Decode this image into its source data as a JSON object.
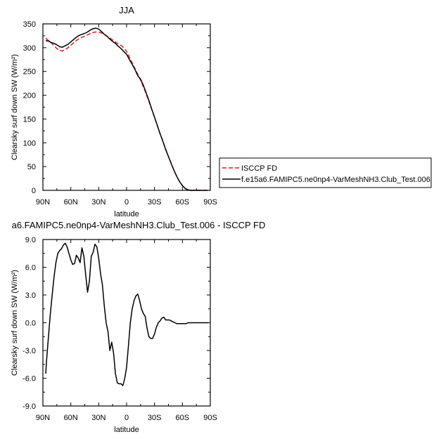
{
  "chart_data": [
    {
      "type": "line",
      "title": "JJA",
      "xlabel": "latitude",
      "ylabel": "Clearsky surf down SW (W/m²)",
      "xlim": [
        90,
        -90
      ],
      "ylim": [
        0,
        350
      ],
      "x_ticks": [
        90,
        60,
        30,
        0,
        -30,
        -60,
        -90
      ],
      "x_tick_labels": [
        "90N",
        "60N",
        "30N",
        "0",
        "30S",
        "60S",
        "90S"
      ],
      "y_ticks": [
        0,
        50,
        100,
        150,
        200,
        250,
        300,
        350
      ],
      "y_tick_labels": [
        "0",
        "50",
        "100",
        "150",
        "200",
        "250",
        "300",
        "350"
      ],
      "grid": false,
      "legend_position": "right",
      "series": [
        {
          "name": "ISCCP FD",
          "color": "#e41a1c",
          "dash": "dashed",
          "x": [
            87,
            84,
            81,
            78,
            75,
            72,
            69,
            66,
            63,
            60,
            57,
            54,
            51,
            48,
            45,
            42,
            39,
            36,
            33,
            30,
            27,
            24,
            21,
            18,
            15,
            12,
            9,
            6,
            3,
            0,
            -3,
            -6,
            -9,
            -12,
            -15,
            -18,
            -21,
            -24,
            -27,
            -30,
            -33,
            -36,
            -39,
            -42,
            -45,
            -48,
            -51,
            -54,
            -57,
            -60,
            -63,
            -66,
            -69,
            -72,
            -75,
            -78,
            -81,
            -84,
            -87
          ],
          "y": [
            320,
            315,
            310,
            304,
            298,
            294,
            293,
            296,
            300,
            305,
            310,
            315,
            319,
            322,
            324,
            327,
            330,
            332,
            333,
            333,
            331,
            328,
            324,
            320,
            316,
            312,
            308,
            305,
            300,
            292,
            280,
            268,
            256,
            244,
            232,
            218,
            203,
            187,
            170,
            153,
            136,
            119,
            103,
            87,
            71,
            56,
            42,
            29,
            18,
            10,
            4,
            1,
            0,
            0,
            0,
            0,
            0,
            0,
            0
          ]
        },
        {
          "name": "f.e15a6.FAMIPC5.ne0np4-VarMeshNH3.Club_Test.006",
          "color": "#000000",
          "dash": "solid",
          "x": [
            87,
            84,
            81,
            78,
            75,
            72,
            69,
            66,
            63,
            60,
            57,
            54,
            51,
            48,
            45,
            42,
            39,
            36,
            33,
            30,
            27,
            24,
            21,
            18,
            15,
            12,
            9,
            6,
            3,
            0,
            -3,
            -6,
            -9,
            -12,
            -15,
            -18,
            -21,
            -24,
            -27,
            -30,
            -33,
            -36,
            -39,
            -42,
            -45,
            -48,
            -51,
            -54,
            -57,
            -60,
            -63,
            -66,
            -69,
            -72,
            -75,
            -78,
            -81,
            -84,
            -87
          ],
          "y": [
            314.5,
            314,
            311,
            309,
            306,
            302,
            301,
            304,
            307,
            312,
            317,
            322,
            326,
            328,
            330,
            333,
            337,
            340,
            341,
            339,
            334,
            328,
            324,
            318,
            313,
            309,
            303,
            298,
            292,
            286,
            275,
            265,
            254,
            241,
            234,
            221,
            205,
            189,
            171,
            154,
            137,
            119,
            103,
            86,
            71,
            56,
            42,
            29,
            18,
            10,
            4,
            1,
            0,
            0,
            0,
            0,
            0,
            0,
            0
          ]
        }
      ]
    },
    {
      "type": "line",
      "title": "a6.FAMIPC5.ne0np4-VarMeshNH3.Club_Test.006 - ISCCP FD",
      "xlabel": "latitude",
      "ylabel": "Clearsky surf down SW (W/m²)",
      "xlim": [
        90,
        -90
      ],
      "ylim": [
        -9,
        9
      ],
      "x_ticks": [
        90,
        60,
        30,
        0,
        -30,
        -60,
        -90
      ],
      "x_tick_labels": [
        "90N",
        "60N",
        "30N",
        "0",
        "30S",
        "60S",
        "90S"
      ],
      "y_ticks": [
        -9,
        -6,
        -3,
        0,
        3,
        6,
        9
      ],
      "y_tick_labels": [
        "-9.0",
        "-6.0",
        "-3.0",
        "0.0",
        "3.0",
        "6.0",
        "9.0"
      ],
      "grid": false,
      "series": [
        {
          "color": "#000000",
          "dash": "solid",
          "x": [
            87,
            86,
            84,
            82,
            80,
            78,
            76,
            74,
            72,
            70,
            68,
            66,
            64,
            62,
            60,
            58,
            56,
            54,
            52,
            50,
            48,
            46,
            44,
            42,
            40,
            38,
            36,
            34,
            32,
            30,
            28,
            26,
            24,
            22,
            20,
            18,
            16,
            14,
            12,
            10,
            8,
            6,
            4,
            2,
            0,
            -2,
            -4,
            -6,
            -8,
            -10,
            -12,
            -14,
            -16,
            -18,
            -20,
            -22,
            -24,
            -26,
            -28,
            -30,
            -32,
            -34,
            -36,
            -38,
            -40,
            -42,
            -44,
            -46,
            -48,
            -50,
            -52,
            -54,
            -56,
            -58,
            -60,
            -62,
            -64,
            -66,
            -68,
            -70,
            -72,
            -74,
            -76,
            -78,
            -80,
            -82,
            -84,
            -86,
            -88
          ],
          "y": [
            -5.5,
            -4.0,
            -1.5,
            1.0,
            3.0,
            5.0,
            6.5,
            7.5,
            7.8,
            8.0,
            8.4,
            8.6,
            8.2,
            7.5,
            6.8,
            6.3,
            6.4,
            7.3,
            7.0,
            6.5,
            8.1,
            7.2,
            5.2,
            3.3,
            4.5,
            7.2,
            7.6,
            8.5,
            8.2,
            7.0,
            5.3,
            4.1,
            1.8,
            0.0,
            -1.0,
            -3.0,
            -2.1,
            -3.3,
            -5.5,
            -6.5,
            -6.6,
            -6.6,
            -6.8,
            -6.0,
            -4.8,
            -2.5,
            0.0,
            1.5,
            2.4,
            2.9,
            3.1,
            2.4,
            1.5,
            1.0,
            0.7,
            -0.6,
            -1.5,
            -1.7,
            -1.7,
            -1.2,
            -0.5,
            0.0,
            0.2,
            0.5,
            0.6,
            0.3,
            0.3,
            0.3,
            0.2,
            0.1,
            0.0,
            -0.1,
            -0.1,
            -0.1,
            -0.1,
            -0.1,
            -0.1,
            0.0,
            0.0,
            0.0,
            0.0,
            0.0,
            0.0,
            0.0,
            0.0,
            0.0,
            0.0,
            0.0,
            0.0
          ]
        }
      ]
    }
  ]
}
